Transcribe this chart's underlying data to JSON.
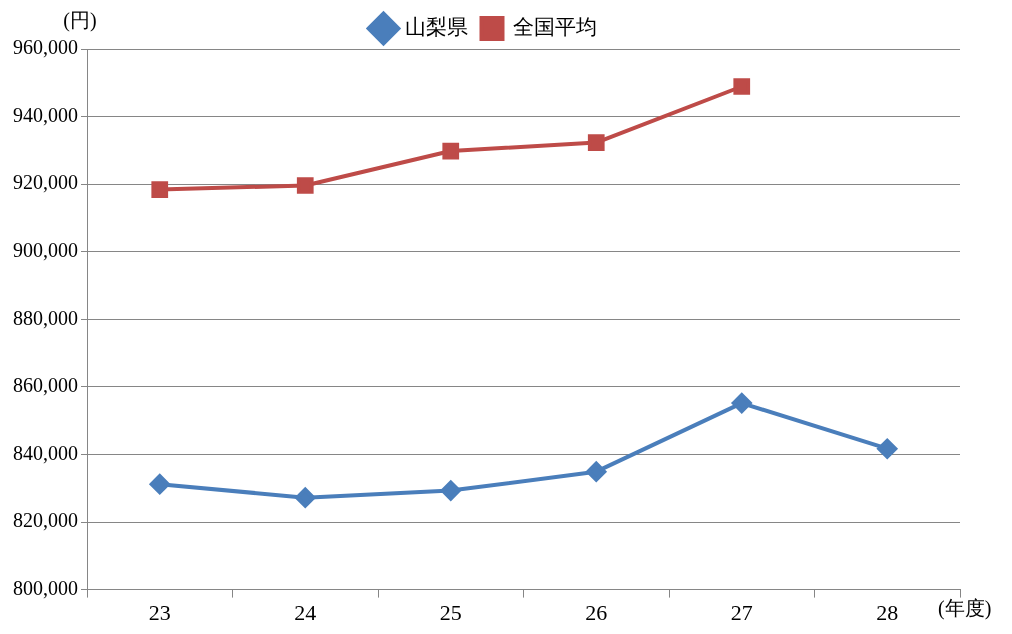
{
  "chart_data": {
    "type": "line",
    "ylabel": "(円)",
    "xlabel": "(年度)",
    "categories": [
      "23",
      "24",
      "25",
      "26",
      "27",
      "28"
    ],
    "series": [
      {
        "name": "山梨県",
        "color": "#4a7ebb",
        "marker": "diamond",
        "values": [
          831200,
          827200,
          829300,
          834900,
          855200,
          841700
        ]
      },
      {
        "name": "全国平均",
        "color": "#be4b48",
        "marker": "square",
        "values": [
          918400,
          919600,
          929800,
          932300,
          948900,
          null
        ]
      }
    ],
    "ylim": [
      800000,
      960000
    ],
    "yticks": [
      {
        "value": 800000,
        "label": "800,000"
      },
      {
        "value": 820000,
        "label": "820,000"
      },
      {
        "value": 840000,
        "label": "840,000"
      },
      {
        "value": 860000,
        "label": "860,000"
      },
      {
        "value": 880000,
        "label": "880,000"
      },
      {
        "value": 900000,
        "label": "900,000"
      },
      {
        "value": 920000,
        "label": "920,000"
      },
      {
        "value": 940000,
        "label": "940,000"
      },
      {
        "value": 960000,
        "label": "960,000"
      }
    ],
    "grid": "y",
    "legend": "top",
    "line_style": "solid"
  }
}
